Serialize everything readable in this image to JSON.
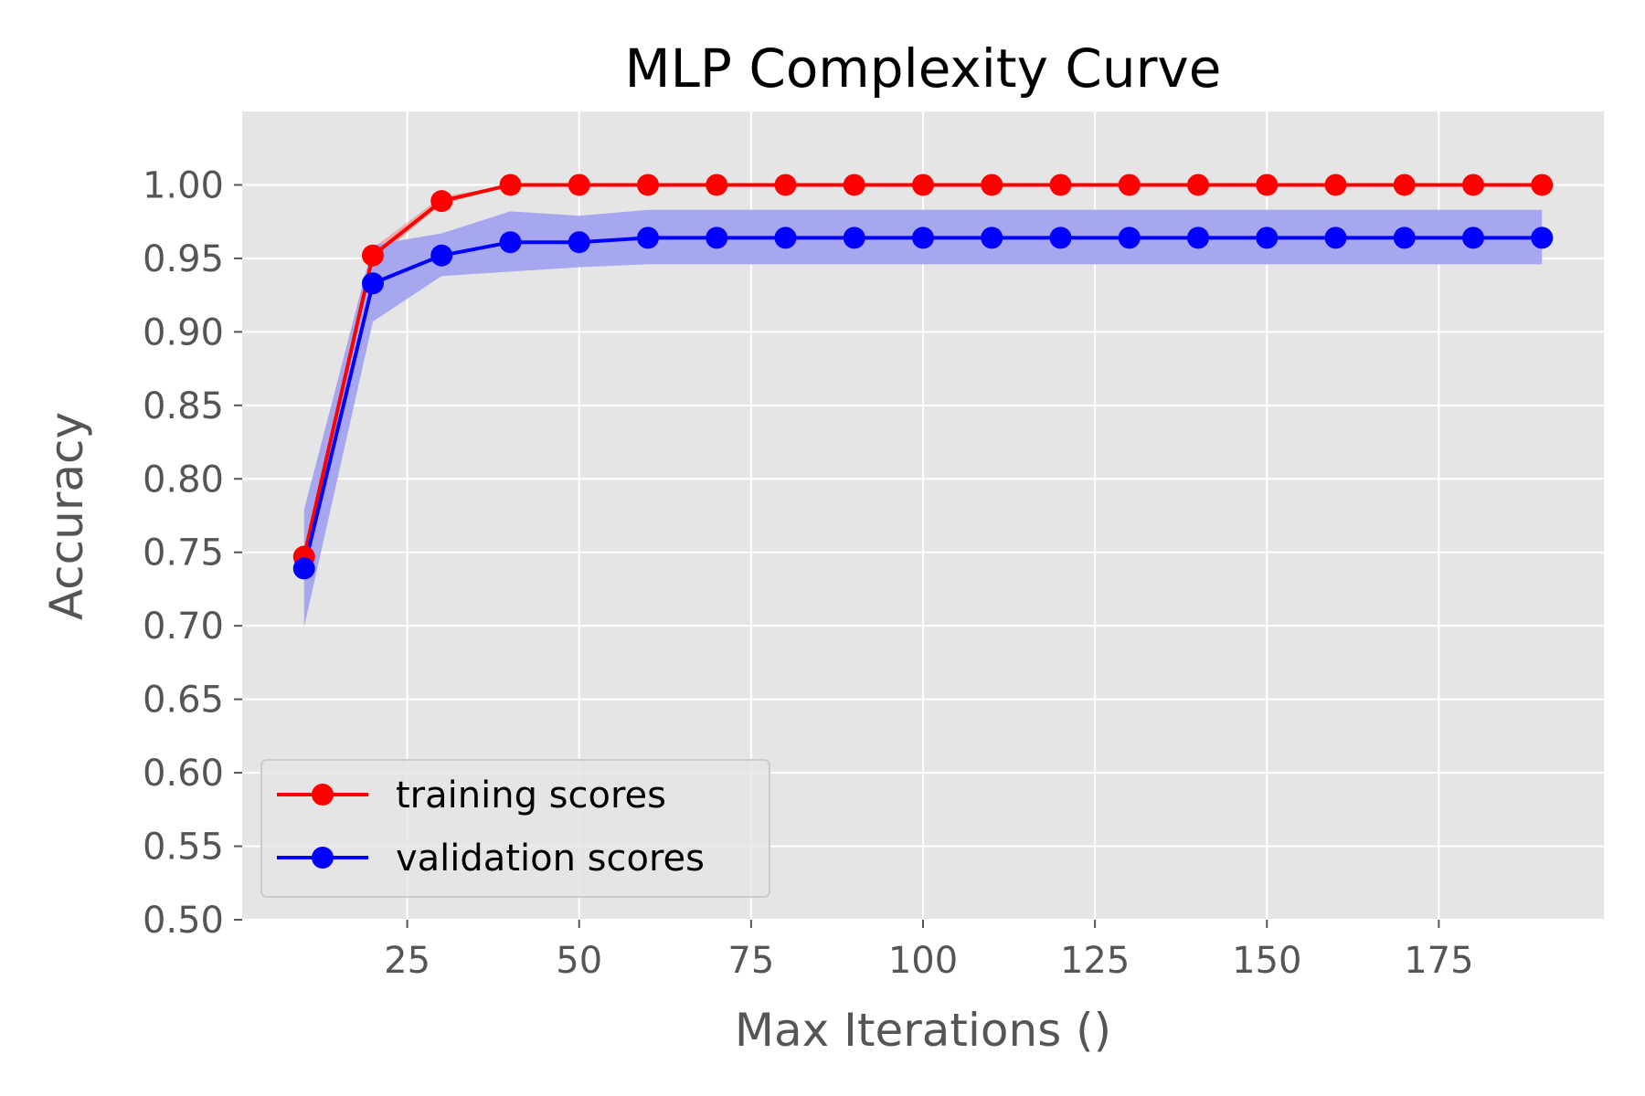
{
  "chart_data": {
    "type": "line",
    "title": "MLP Complexity Curve",
    "xlabel": "Max Iterations ()",
    "ylabel": "Accuracy",
    "x": [
      10,
      20,
      30,
      40,
      50,
      60,
      70,
      80,
      90,
      100,
      110,
      120,
      130,
      140,
      150,
      160,
      170,
      180,
      190
    ],
    "xlim": [
      1,
      199
    ],
    "ylim": [
      0.5,
      1.05
    ],
    "xticks": [
      25,
      50,
      75,
      100,
      125,
      150,
      175
    ],
    "xtick_labels": [
      "25",
      "50",
      "75",
      "100",
      "125",
      "150",
      "175"
    ],
    "yticks": [
      0.5,
      0.55,
      0.6,
      0.65,
      0.7,
      0.75,
      0.8,
      0.85,
      0.9,
      0.95,
      1.0
    ],
    "ytick_labels": [
      "0.50",
      "0.55",
      "0.60",
      "0.65",
      "0.70",
      "0.75",
      "0.80",
      "0.85",
      "0.90",
      "0.95",
      "1.00"
    ],
    "grid": true,
    "legend_position": "lower-left",
    "background_color": "#e5e5e5",
    "series": [
      {
        "name": "training scores",
        "color": "#ff0000",
        "values": [
          0.747,
          0.952,
          0.989,
          1.0,
          1.0,
          1.0,
          1.0,
          1.0,
          1.0,
          1.0,
          1.0,
          1.0,
          1.0,
          1.0,
          1.0,
          1.0,
          1.0,
          1.0,
          1.0
        ],
        "band_lower": [
          0.742,
          0.948,
          0.987,
          0.999,
          1.0,
          1.0,
          1.0,
          1.0,
          1.0,
          1.0,
          1.0,
          1.0,
          1.0,
          1.0,
          1.0,
          1.0,
          1.0,
          1.0,
          1.0
        ],
        "band_upper": [
          0.752,
          0.957,
          0.992,
          1.0,
          1.0,
          1.0,
          1.0,
          1.0,
          1.0,
          1.0,
          1.0,
          1.0,
          1.0,
          1.0,
          1.0,
          1.0,
          1.0,
          1.0,
          1.0
        ]
      },
      {
        "name": "validation scores",
        "color": "#0000ff",
        "band_color": "#a0a0f0",
        "values": [
          0.739,
          0.933,
          0.952,
          0.961,
          0.961,
          0.964,
          0.964,
          0.964,
          0.964,
          0.964,
          0.964,
          0.964,
          0.964,
          0.964,
          0.964,
          0.964,
          0.964,
          0.964,
          0.964
        ],
        "band_lower": [
          0.699,
          0.907,
          0.938,
          0.941,
          0.944,
          0.946,
          0.946,
          0.946,
          0.946,
          0.946,
          0.946,
          0.946,
          0.946,
          0.946,
          0.946,
          0.946,
          0.946,
          0.946,
          0.946
        ],
        "band_upper": [
          0.779,
          0.959,
          0.967,
          0.982,
          0.979,
          0.983,
          0.983,
          0.983,
          0.983,
          0.983,
          0.983,
          0.983,
          0.983,
          0.983,
          0.983,
          0.983,
          0.983,
          0.983,
          0.983
        ]
      }
    ]
  }
}
